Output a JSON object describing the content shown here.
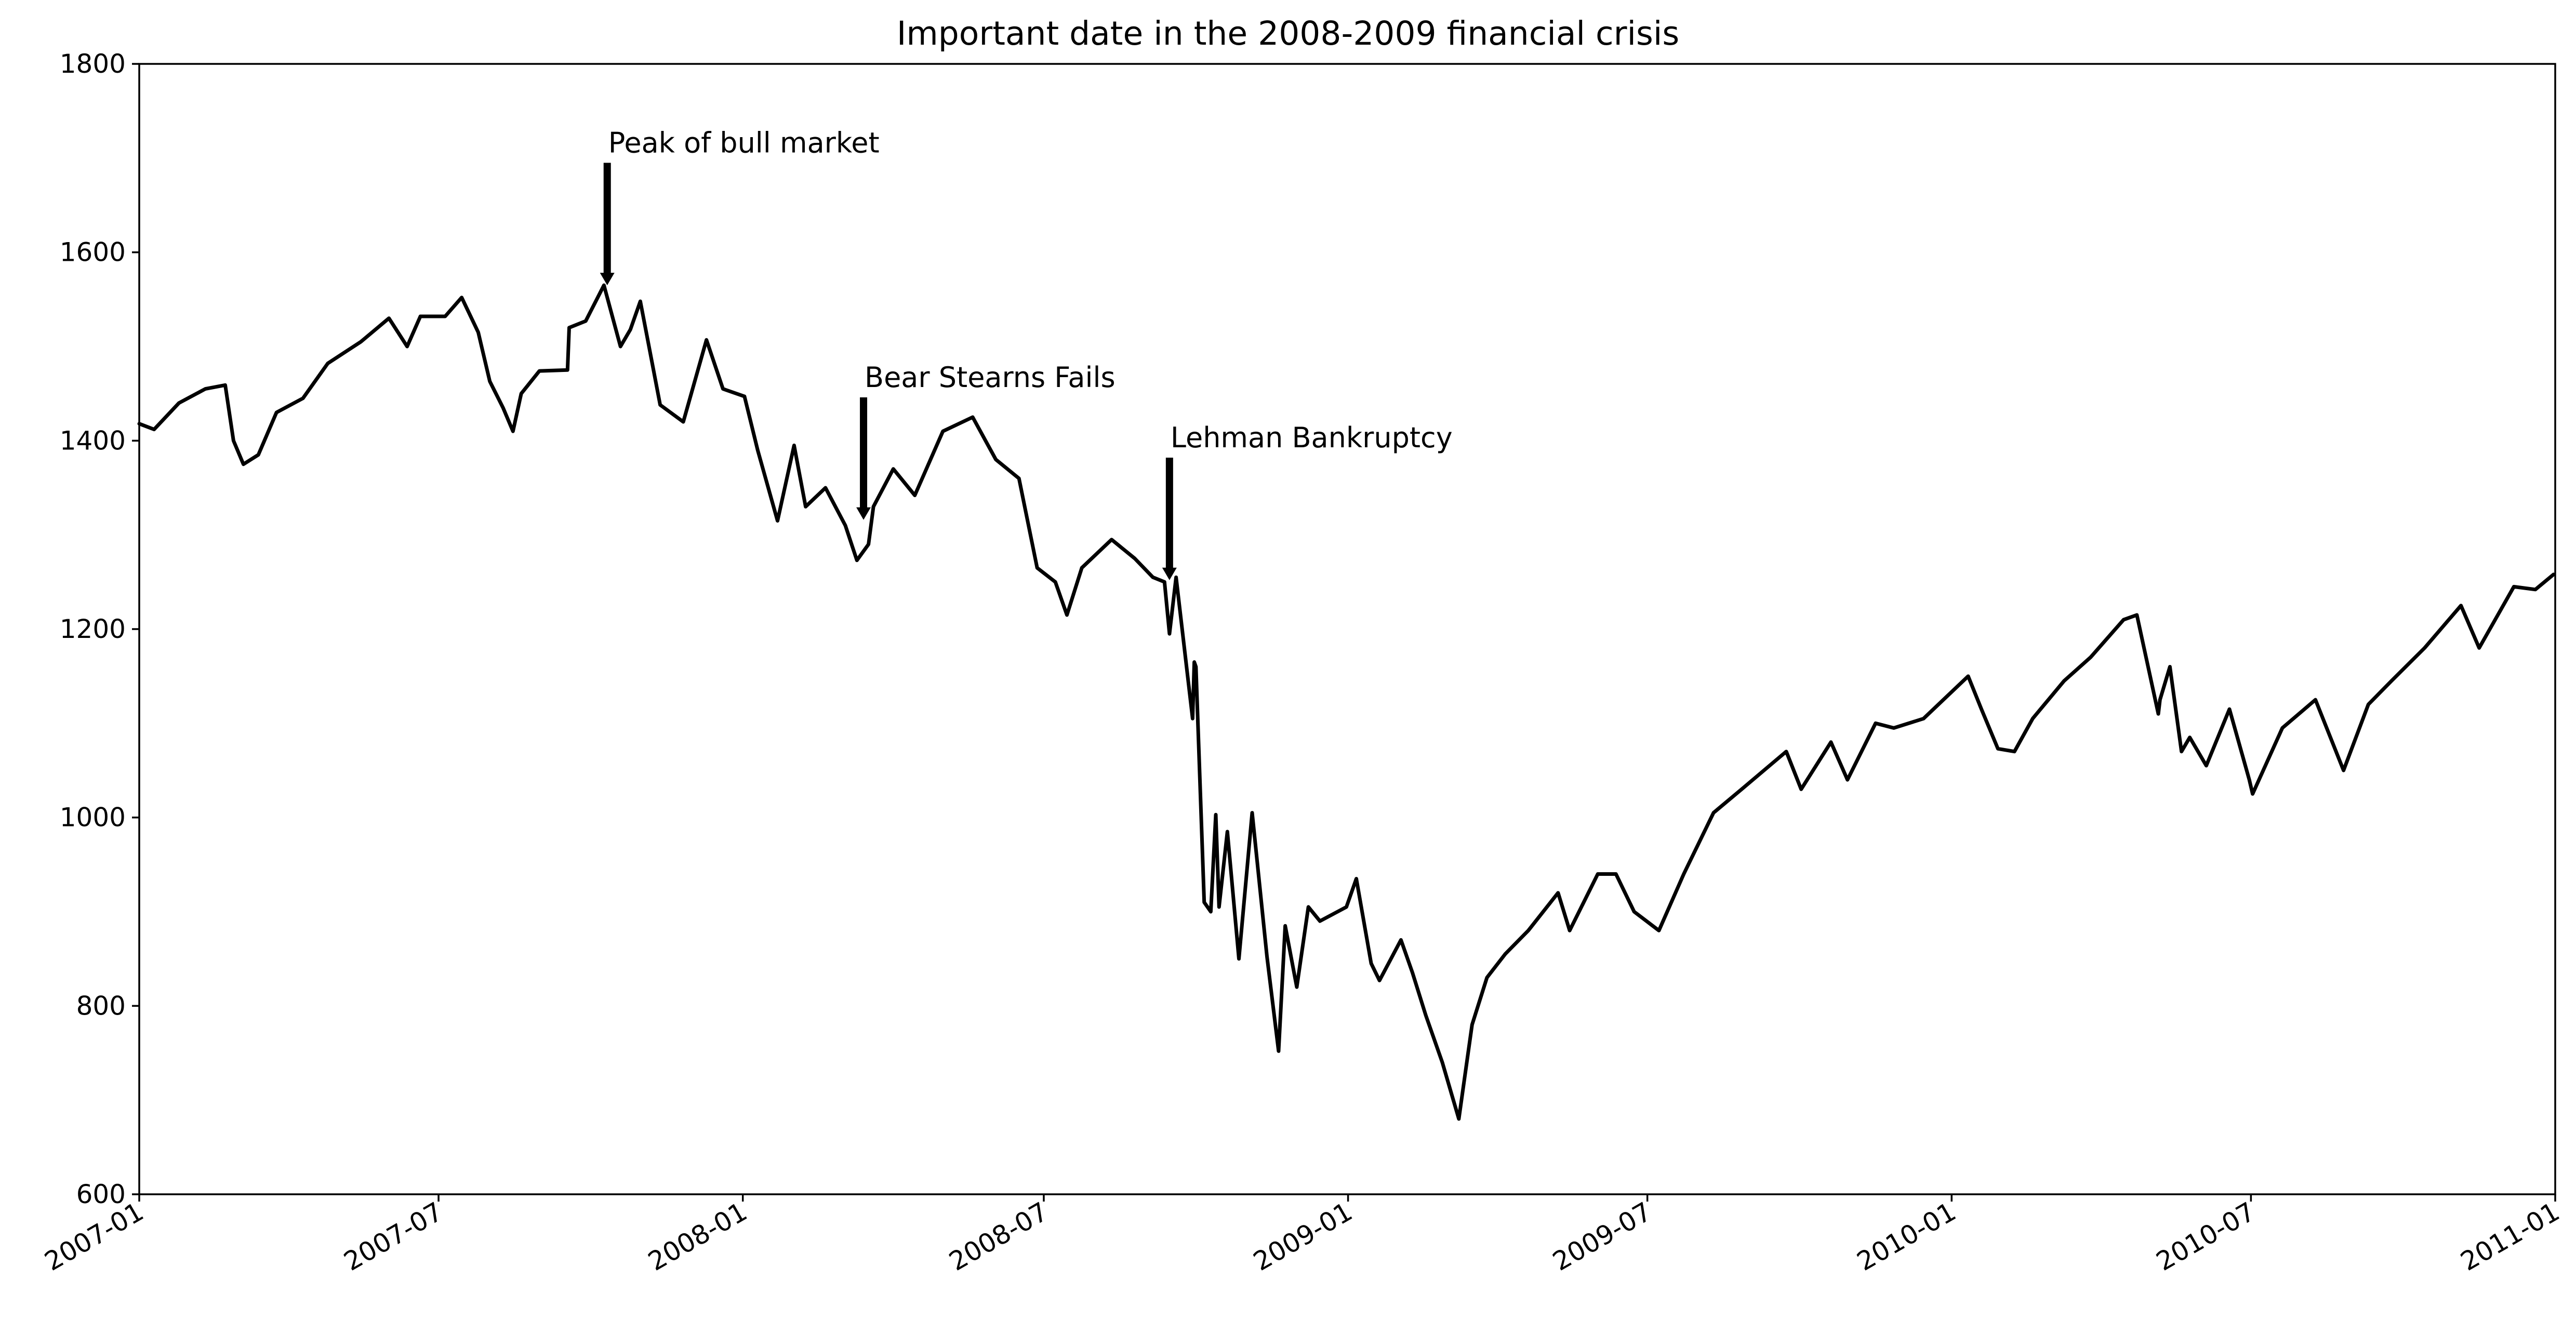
{
  "chart_data": {
    "type": "line",
    "title": "Important date in the 2008-2009 financial crisis",
    "xlabel": "",
    "ylabel": "",
    "xlim": [
      "2007-01-01",
      "2011-01-01"
    ],
    "ylim": [
      600,
      1800
    ],
    "x_ticks": [
      "2007-01",
      "2007-07",
      "2008-01",
      "2008-07",
      "2009-01",
      "2009-07",
      "2010-01",
      "2010-07",
      "2011-01"
    ],
    "y_ticks": [
      "600",
      "800",
      "1000",
      "1200",
      "1400",
      "1600",
      "1800"
    ],
    "grid": false,
    "line_color": "#000000",
    "series": [
      {
        "x": [
          "2007-01-01",
          "2007-01-10",
          "2007-01-25",
          "2007-02-10",
          "2007-02-22",
          "2007-02-27",
          "2007-03-05",
          "2007-03-14",
          "2007-03-25",
          "2007-04-10",
          "2007-04-25",
          "2007-05-15",
          "2007-06-01",
          "2007-06-12",
          "2007-06-20",
          "2007-07-05",
          "2007-07-15",
          "2007-07-25",
          "2007-08-01",
          "2007-08-09",
          "2007-08-15",
          "2007-08-20",
          "2007-08-31",
          "2007-09-17",
          "2007-09-18",
          "2007-09-28",
          "2007-10-09",
          "2007-10-19",
          "2007-10-25",
          "2007-10-31",
          "2007-11-08",
          "2007-11-12",
          "2007-11-26",
          "2007-12-10",
          "2007-12-20",
          "2008-01-02",
          "2008-01-10",
          "2008-01-22",
          "2008-02-01",
          "2008-02-08",
          "2008-02-20",
          "2008-03-03",
          "2008-03-10",
          "2008-03-17",
          "2008-03-20",
          "2008-04-01",
          "2008-04-14",
          "2008-05-01",
          "2008-05-19",
          "2008-06-02",
          "2008-06-16",
          "2008-06-27",
          "2008-07-08",
          "2008-07-15",
          "2008-07-24",
          "2008-08-11",
          "2008-08-25",
          "2008-09-05",
          "2008-09-12",
          "2008-09-15",
          "2008-09-19",
          "2008-09-29",
          "2008-09-30",
          "2008-10-01",
          "2008-10-06",
          "2008-10-10",
          "2008-10-13",
          "2008-10-15",
          "2008-10-20",
          "2008-10-27",
          "2008-11-04",
          "2008-11-13",
          "2008-11-20",
          "2008-11-24",
          "2008-12-01",
          "2008-12-08",
          "2008-12-15",
          "2008-12-31",
          "2009-01-06",
          "2009-01-15",
          "2009-01-20",
          "2009-02-02",
          "2009-02-09",
          "2009-02-17",
          "2009-02-27",
          "2009-03-09",
          "2009-03-17",
          "2009-03-26",
          "2009-04-06",
          "2009-04-20",
          "2009-05-08",
          "2009-05-15",
          "2009-06-01",
          "2009-06-12",
          "2009-06-23",
          "2009-07-08",
          "2009-07-23",
          "2009-08-10",
          "2009-08-27",
          "2009-09-23",
          "2009-10-02",
          "2009-10-20",
          "2009-10-30",
          "2009-11-16",
          "2009-11-27",
          "2009-12-15",
          "2010-01-11",
          "2010-01-19",
          "2010-01-29",
          "2010-02-08",
          "2010-02-19",
          "2010-03-10",
          "2010-03-26",
          "2010-04-15",
          "2010-04-23",
          "2010-05-06",
          "2010-05-07",
          "2010-05-13",
          "2010-05-20",
          "2010-05-25",
          "2010-06-04",
          "2010-06-18",
          "2010-06-30",
          "2010-07-02",
          "2010-07-20",
          "2010-08-09",
          "2010-08-26",
          "2010-09-10",
          "2010-09-24",
          "2010-10-14",
          "2010-11-05",
          "2010-11-16",
          "2010-12-07",
          "2010-12-20",
          "2010-12-31"
        ],
        "y": [
          1418,
          1412,
          1440,
          1455,
          1459,
          1400,
          1375,
          1385,
          1430,
          1445,
          1482,
          1505,
          1530,
          1500,
          1532,
          1532,
          1552,
          1515,
          1463,
          1435,
          1410,
          1450,
          1474,
          1475,
          1520,
          1527,
          1565,
          1500,
          1518,
          1548,
          1475,
          1438,
          1420,
          1507,
          1455,
          1447,
          1390,
          1315,
          1395,
          1330,
          1350,
          1310,
          1273,
          1290,
          1330,
          1370,
          1342,
          1410,
          1425,
          1380,
          1360,
          1265,
          1250,
          1215,
          1265,
          1295,
          1275,
          1255,
          1250,
          1195,
          1255,
          1105,
          1165,
          1160,
          910,
          900,
          1003,
          905,
          985,
          850,
          1005,
          852,
          752,
          885,
          820,
          905,
          890,
          905,
          935,
          845,
          827,
          870,
          835,
          790,
          740,
          680,
          780,
          830,
          855,
          880,
          920,
          880,
          940,
          940,
          900,
          880,
          940,
          1005,
          1030,
          1070,
          1030,
          1080,
          1040,
          1100,
          1095,
          1105,
          1150,
          1115,
          1073,
          1070,
          1105,
          1145,
          1170,
          1210,
          1215,
          1110,
          1125,
          1160,
          1070,
          1085,
          1055,
          1115,
          1040,
          1025,
          1095,
          1125,
          1050,
          1120,
          1145,
          1180,
          1225,
          1180,
          1245,
          1242,
          1258
        ]
      }
    ],
    "annotations": [
      {
        "text": "Peak of bull market",
        "x": "2007-10-11",
        "y": 1565
      },
      {
        "text": "Bear Stearns Fails",
        "x": "2008-03-14",
        "y": 1316
      },
      {
        "text": "Lehman Bankruptcy",
        "x": "2008-09-15",
        "y": 1252
      }
    ]
  }
}
